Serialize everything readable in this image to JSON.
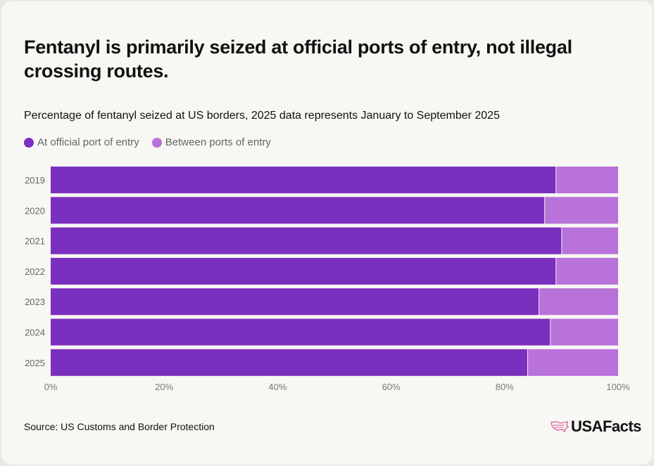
{
  "title": "Fentanyl is primarily seized at official ports of entry, not illegal crossing routes.",
  "subtitle": "Percentage of fentanyl seized at US borders, 2025 data represents January to September 2025",
  "source": "Source: US Customs and Border Protection",
  "logo_text": "USAFacts",
  "chart_data": {
    "type": "bar",
    "orientation": "horizontal",
    "stacked": true,
    "categories": [
      "2019",
      "2020",
      "2021",
      "2022",
      "2023",
      "2024",
      "2025"
    ],
    "series": [
      {
        "name": "At official port of entry",
        "color": "#7b2fbe",
        "values": [
          89,
          87,
          90,
          89,
          86,
          88,
          84
        ]
      },
      {
        "name": "Between ports of entry",
        "color": "#b872da",
        "values": [
          11,
          13,
          10,
          11,
          14,
          12,
          16
        ]
      }
    ],
    "xlim": [
      0,
      100
    ],
    "xticks": [
      "0%",
      "20%",
      "40%",
      "60%",
      "80%",
      "100%"
    ],
    "legend": "top-left",
    "grid": false
  }
}
